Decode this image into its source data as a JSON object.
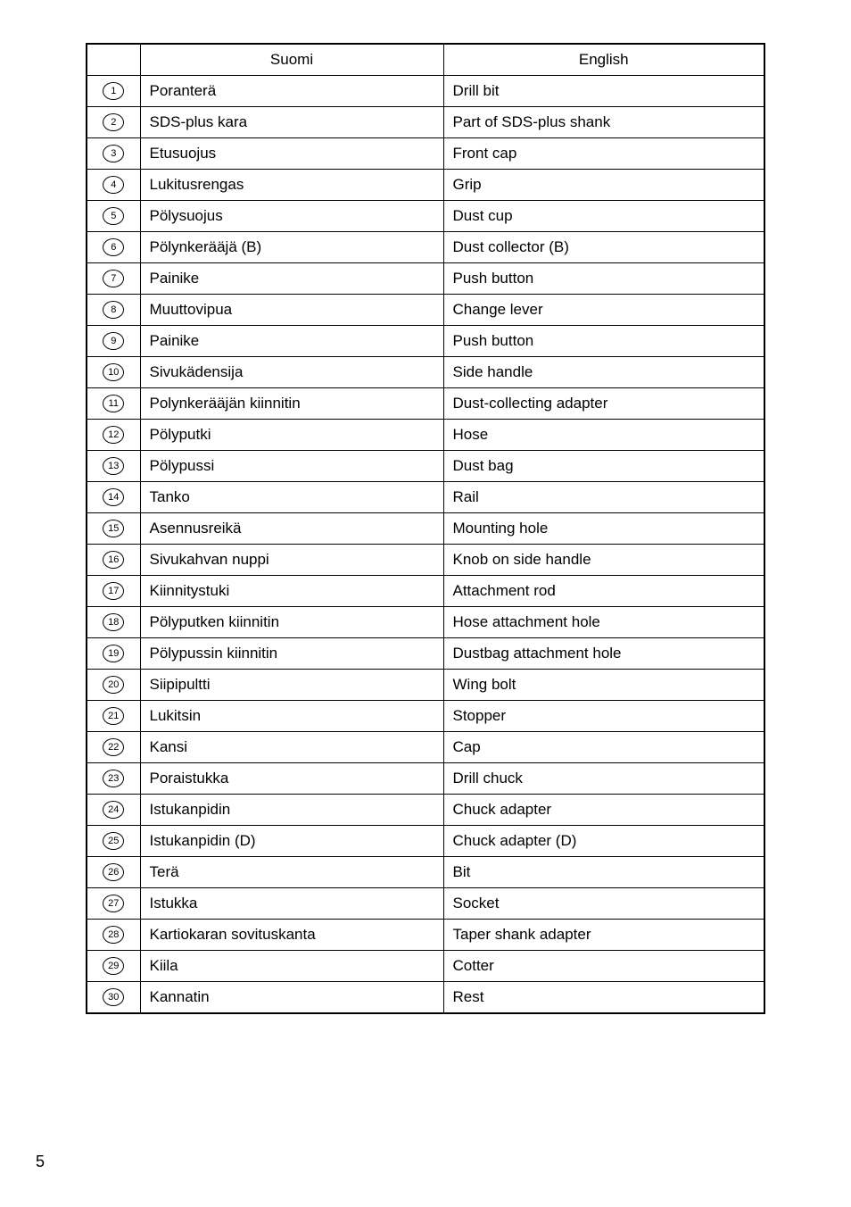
{
  "table": {
    "headers": {
      "col1": "",
      "col2": "Suomi",
      "col3": "English"
    },
    "rows": [
      {
        "num": "1",
        "suomi": "Poranterä",
        "english": "Drill bit"
      },
      {
        "num": "2",
        "suomi": "SDS-plus kara",
        "english": "Part of SDS-plus shank"
      },
      {
        "num": "3",
        "suomi": "Etusuojus",
        "english": "Front cap"
      },
      {
        "num": "4",
        "suomi": "Lukitusrengas",
        "english": "Grip"
      },
      {
        "num": "5",
        "suomi": "Pölysuojus",
        "english": "Dust cup"
      },
      {
        "num": "6",
        "suomi": "Pölynkerääjä (B)",
        "english": "Dust collector (B)"
      },
      {
        "num": "7",
        "suomi": "Painike",
        "english": "Push button"
      },
      {
        "num": "8",
        "suomi": "Muuttovipua",
        "english": "Change lever"
      },
      {
        "num": "9",
        "suomi": "Painike",
        "english": "Push button"
      },
      {
        "num": "10",
        "suomi": "Sivukädensija",
        "english": "Side handle"
      },
      {
        "num": "11",
        "suomi": "Polynkerääjän kiinnitin",
        "english": "Dust-collecting adapter"
      },
      {
        "num": "12",
        "suomi": "Pölyputki",
        "english": "Hose"
      },
      {
        "num": "13",
        "suomi": "Pölypussi",
        "english": "Dust bag"
      },
      {
        "num": "14",
        "suomi": "Tanko",
        "english": "Rail"
      },
      {
        "num": "15",
        "suomi": "Asennusreikä",
        "english": "Mounting hole"
      },
      {
        "num": "16",
        "suomi": "Sivukahvan nuppi",
        "english": "Knob on side handle"
      },
      {
        "num": "17",
        "suomi": "Kiinnitystuki",
        "english": "Attachment rod"
      },
      {
        "num": "18",
        "suomi": "Pölyputken kiinnitin",
        "english": "Hose attachment hole"
      },
      {
        "num": "19",
        "suomi": "Pölypussin kiinnitin",
        "english": "Dustbag attachment hole"
      },
      {
        "num": "20",
        "suomi": "Siipipultti",
        "english": "Wing bolt"
      },
      {
        "num": "21",
        "suomi": "Lukitsin",
        "english": "Stopper"
      },
      {
        "num": "22",
        "suomi": "Kansi",
        "english": "Cap"
      },
      {
        "num": "23",
        "suomi": "Poraistukka",
        "english": "Drill chuck"
      },
      {
        "num": "24",
        "suomi": "Istukanpidin",
        "english": "Chuck adapter"
      },
      {
        "num": "25",
        "suomi": "Istukanpidin (D)",
        "english": "Chuck adapter (D)"
      },
      {
        "num": "26",
        "suomi": "Terä",
        "english": "Bit"
      },
      {
        "num": "27",
        "suomi": "Istukka",
        "english": "Socket"
      },
      {
        "num": "28",
        "suomi": "Kartiokaran sovituskanta",
        "english": "Taper shank adapter"
      },
      {
        "num": "29",
        "suomi": "Kiila",
        "english": "Cotter"
      },
      {
        "num": "30",
        "suomi": "Kannatin",
        "english": "Rest"
      }
    ]
  },
  "page_number": "5"
}
